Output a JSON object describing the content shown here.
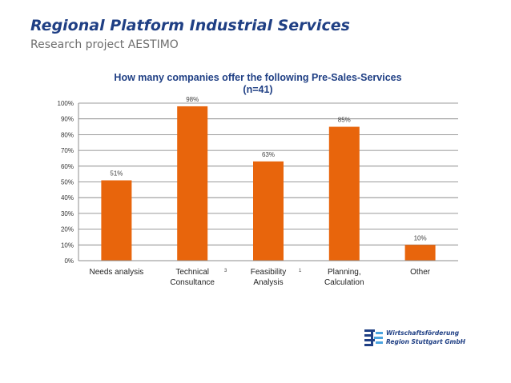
{
  "slide": {
    "title": "Regional Platform Industrial Services",
    "subtitle": "Research project AESTIMO"
  },
  "logo": {
    "line1": "Wirtschaftsförderung",
    "line2": "Region Stuttgart GmbH",
    "color": "#1f3f84"
  },
  "stray_marks": [
    "3",
    "1"
  ],
  "chart_data": {
    "type": "bar",
    "title_line1": "How many companies offer the following Pre-Sales-Services",
    "title_line2": "(n=41)",
    "categories": [
      [
        "Needs analysis"
      ],
      [
        "Technical",
        "Consultance"
      ],
      [
        "Feasibility",
        "Analysis"
      ],
      [
        "Planning,",
        "Calculation"
      ],
      [
        "Other"
      ]
    ],
    "values": [
      51,
      98,
      63,
      85,
      10
    ],
    "data_labels": [
      "51%",
      "98%",
      "63%",
      "85%",
      "10%"
    ],
    "ylim": [
      0,
      100
    ],
    "yticks": [
      "0%",
      "10%",
      "20%",
      "30%",
      "40%",
      "50%",
      "60%",
      "70%",
      "80%",
      "90%",
      "100%"
    ],
    "grid": true,
    "bar_color": "#e8650c",
    "title_color": "#1f3f84"
  }
}
